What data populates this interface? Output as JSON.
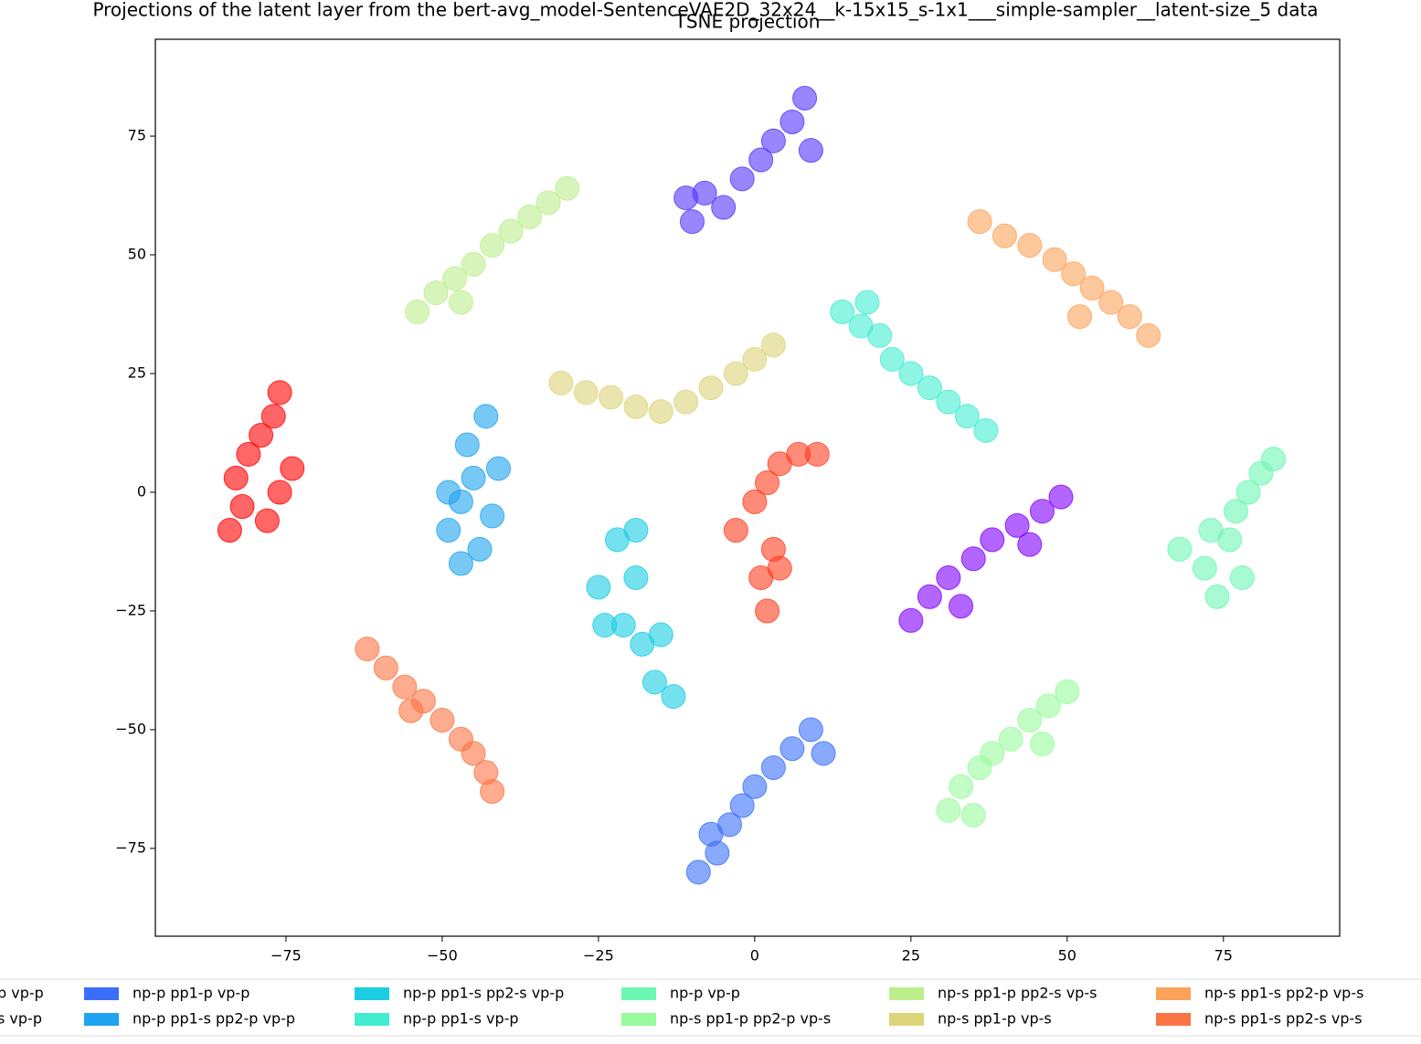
{
  "chart_data": {
    "type": "scatter",
    "title": "Projections of the latent layer from the bert-avg_model-SentenceVAE2D_32x24__k-15x15_s-1x1___simple-sampler__latent-size_5 data",
    "subtitle": "TSNE projection",
    "xlim": [
      -95.9,
      93.6
    ],
    "ylim": [
      -93.5,
      95.4
    ],
    "xticks": [
      {
        "value": -75,
        "label": "−75"
      },
      {
        "value": -50,
        "label": "−50"
      },
      {
        "value": -25,
        "label": "−25"
      },
      0,
      25,
      50,
      75
    ],
    "yticks": [
      {
        "value": -75,
        "label": "−75"
      },
      {
        "value": -50,
        "label": "−50"
      },
      {
        "value": -25,
        "label": "−25"
      },
      0,
      25,
      50,
      75
    ],
    "grid": false,
    "legend": "bottom",
    "series": [
      {
        "name": "p vp-p",
        "color": "#8000ff",
        "x": [
          25,
          28,
          31,
          35,
          38,
          42,
          46,
          49,
          33,
          44
        ],
        "y": [
          -27,
          -22,
          -18,
          -14,
          -10,
          -7,
          -4,
          -1,
          -24,
          -11
        ]
      },
      {
        "name": "s vp-p",
        "color": "#5236fd",
        "x": [
          -10,
          -8,
          -5,
          -2,
          1,
          3,
          6,
          8,
          9,
          -11
        ],
        "y": [
          57,
          63,
          60,
          66,
          70,
          74,
          78,
          83,
          72,
          62
        ]
      },
      {
        "name": "np-p pp1-p vp-p",
        "color": "#3a6ffb",
        "x": [
          -9,
          -6,
          -4,
          -2,
          0,
          3,
          6,
          9,
          11,
          -7
        ],
        "y": [
          -80,
          -76,
          -70,
          -66,
          -62,
          -58,
          -54,
          -50,
          -55,
          -72
        ]
      },
      {
        "name": "np-p pp1-s pp2-p vp-p",
        "color": "#1ea3ef",
        "x": [
          -47,
          -49,
          -47,
          -45,
          -46,
          -43,
          -42,
          -44,
          -41,
          -49
        ],
        "y": [
          -15,
          -8,
          -2,
          3,
          10,
          16,
          -5,
          -12,
          5,
          0
        ]
      },
      {
        "name": "np-p pp1-s pp2-s vp-p",
        "color": "#1bcde2",
        "x": [
          -25,
          -22,
          -19,
          -21,
          -18,
          -15,
          -16,
          -13,
          -24,
          -19
        ],
        "y": [
          -20,
          -10,
          -18,
          -28,
          -32,
          -30,
          -40,
          -43,
          -28,
          -8
        ]
      },
      {
        "name": "np-p pp1-s vp-p",
        "color": "#42ecd0",
        "x": [
          14,
          17,
          20,
          22,
          25,
          28,
          31,
          34,
          37,
          18
        ],
        "y": [
          38,
          35,
          33,
          28,
          25,
          22,
          19,
          16,
          13,
          40
        ]
      },
      {
        "name": "np-p vp-p",
        "color": "#6cf7b4",
        "x": [
          68,
          72,
          74,
          76,
          77,
          79,
          81,
          83,
          73,
          78
        ],
        "y": [
          -12,
          -16,
          -22,
          -10,
          -4,
          0,
          4,
          7,
          -8,
          -18
        ]
      },
      {
        "name": "np-s pp1-p pp2-p vp-s",
        "color": "#98fb9c",
        "x": [
          31,
          33,
          36,
          38,
          41,
          44,
          47,
          50,
          35,
          46
        ],
        "y": [
          -67,
          -62,
          -58,
          -55,
          -52,
          -48,
          -45,
          -42,
          -68,
          -53
        ]
      },
      {
        "name": "np-s pp1-p pp2-s vp-s",
        "color": "#bdee8c",
        "x": [
          -54,
          -51,
          -48,
          -45,
          -42,
          -39,
          -36,
          -33,
          -30,
          -47
        ],
        "y": [
          38,
          42,
          45,
          48,
          52,
          55,
          58,
          61,
          64,
          40
        ]
      },
      {
        "name": "np-s pp1-p vp-s",
        "color": "#dcd47a",
        "x": [
          -31,
          -27,
          -23,
          -19,
          -15,
          -11,
          -7,
          -3,
          0,
          3
        ],
        "y": [
          23,
          21,
          20,
          18,
          17,
          19,
          22,
          25,
          28,
          31
        ]
      },
      {
        "name": "np-s pp1-s pp2-p vp-s",
        "color": "#fba35a",
        "x": [
          36,
          40,
          44,
          48,
          51,
          54,
          57,
          60,
          63,
          52
        ],
        "y": [
          57,
          54,
          52,
          49,
          46,
          43,
          40,
          37,
          33,
          37
        ]
      },
      {
        "name": "np-s pp1-s pp2-s vp-s",
        "color": "#fb7444",
        "x": [
          -62,
          -59,
          -56,
          -53,
          -50,
          -47,
          -45,
          -43,
          -42,
          -55
        ],
        "y": [
          -33,
          -37,
          -41,
          -44,
          -48,
          -52,
          -55,
          -59,
          -63,
          -46
        ]
      },
      {
        "color": "#ff3d20",
        "x": [
          -3,
          0,
          2,
          4,
          7,
          10,
          3,
          1,
          4,
          2
        ],
        "y": [
          -8,
          -2,
          2,
          6,
          8,
          8,
          -12,
          -18,
          -16,
          -25
        ]
      },
      {
        "color": "#ff0000",
        "x": [
          -84,
          -82,
          -83,
          -81,
          -79,
          -77,
          -76,
          -76,
          -78,
          -74
        ],
        "y": [
          -8,
          -3,
          3,
          8,
          12,
          16,
          21,
          0,
          -6,
          5
        ]
      }
    ]
  }
}
